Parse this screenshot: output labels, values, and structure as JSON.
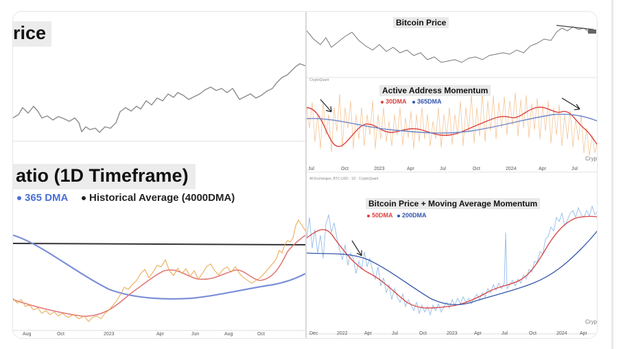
{
  "left": {
    "top_title": "rice",
    "ratio_title": "atio (1D Timeframe)",
    "legend": {
      "dma_label": "365 DMA",
      "dma_color": "#4a6fd6",
      "avg_label": "Historical Average (4000DMA)",
      "avg_color": "#222222"
    },
    "x_ticks": [
      "Aug",
      "Oct",
      "2023",
      "Apr",
      "Jun",
      "Aug",
      "Oct"
    ]
  },
  "right": {
    "price_title": "Bitcoin Price",
    "active_title": "Active Address Momentum",
    "active_legend": [
      {
        "label": "30DMA",
        "color": "#d94040"
      },
      {
        "label": "365DMA",
        "color": "#3355aa"
      }
    ],
    "cq_label": "CryptoQuant",
    "source_label": "All Exchanges, BTC-USD · 1D · CryptoQuant",
    "ma_title": "Bitcoin Price + Moving Average Momentum",
    "ma_legend": [
      {
        "label": "50DMA",
        "color": "#d94040"
      },
      {
        "label": "200DMA",
        "color": "#3355aa"
      }
    ],
    "watermark_1": "Crypt",
    "watermark_2": "Crypt",
    "x_ticks_1": [
      "Jul",
      "Oct",
      "2023",
      "Apr",
      "Jul",
      "Oct",
      "2024",
      "Apr",
      "Jul"
    ],
    "x_ticks_2": [
      "Dec",
      "2022",
      "Apr",
      "Jul",
      "Oct",
      "2023",
      "Apr",
      "Jul",
      "Oct",
      "2024",
      "Apr"
    ]
  }
}
